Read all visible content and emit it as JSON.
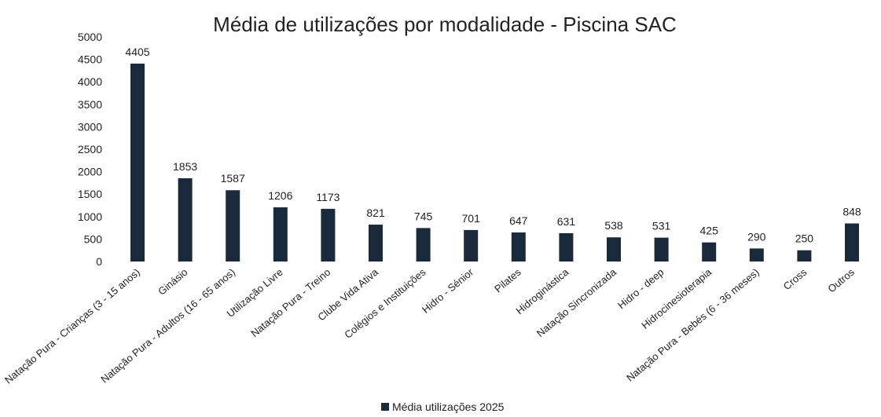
{
  "chart_data": {
    "type": "bar",
    "title": "Média de utilizações por modalidade - Piscina SAC",
    "xlabel": "",
    "ylabel": "",
    "ylim": [
      0,
      5000
    ],
    "yticks": [
      0,
      500,
      1000,
      1500,
      2000,
      2500,
      3000,
      3500,
      4000,
      4500,
      5000
    ],
    "grid": false,
    "legend_position": "bottom",
    "bar_color": "#1b2a3a",
    "categories": [
      "Natação Pura - Crianças (3 - 15 anos)",
      "Ginásio",
      "Natação Pura - Adultos (16 - 65 anos)",
      "Utilização Livre",
      "Natação Pura - Treino",
      "Clube Vida Ativa",
      "Colégios e Instituições",
      "Hidro - Sénior",
      "Pilates",
      "Hidroginástica",
      "Natação Sincronizada",
      "Hidro - deep",
      "Hidrocinesioterapia",
      "Natação Pura - Bebés (6 - 36 meses)",
      "Cross",
      "Outros"
    ],
    "series": [
      {
        "name": "Média utilizações 2025",
        "values": [
          4405,
          1853,
          1587,
          1206,
          1173,
          821,
          745,
          701,
          647,
          631,
          538,
          531,
          425,
          290,
          250,
          848
        ]
      }
    ]
  }
}
